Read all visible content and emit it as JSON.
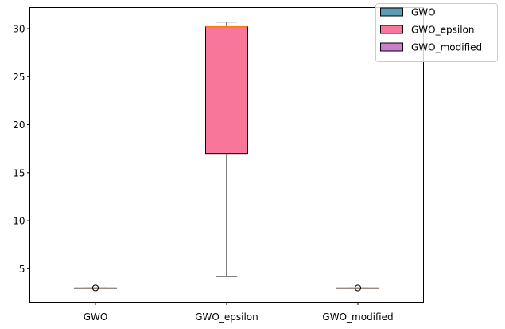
{
  "chart_data": {
    "type": "box",
    "title": "",
    "xlabel": "",
    "ylabel": "",
    "ylim": [
      1.5,
      32.2
    ],
    "yticks": [
      5,
      10,
      15,
      20,
      25,
      30
    ],
    "categories": [
      "GWO",
      "GWO_epsilon",
      "GWO_modified"
    ],
    "series": [
      {
        "name": "GWO",
        "color": "#5b9bb5",
        "whisker_low": 3.0,
        "q1": 3.0,
        "median": 3.0,
        "q3": 3.0,
        "whisker_high": 3.0,
        "outliers": [
          3.0
        ]
      },
      {
        "name": "GWO_epsilon",
        "color": "#f7769a",
        "whisker_low": 4.2,
        "q1": 17.0,
        "median": 30.2,
        "q3": 30.2,
        "whisker_high": 30.7,
        "outliers": []
      },
      {
        "name": "GWO_modified",
        "color": "#c97fcc",
        "whisker_low": 3.0,
        "q1": 3.0,
        "median": 3.0,
        "q3": 3.0,
        "whisker_high": 3.0,
        "outliers": [
          3.0
        ]
      }
    ],
    "median_color": "#ff7f0e",
    "grid": false,
    "legend_position": "top-right"
  }
}
